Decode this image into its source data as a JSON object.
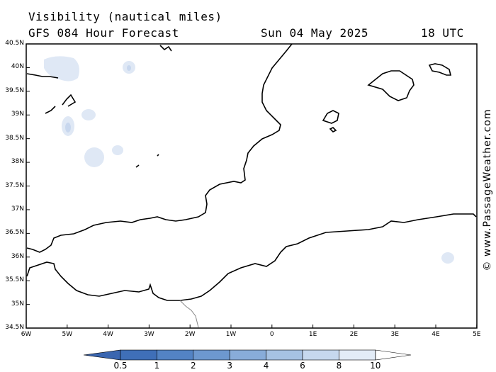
{
  "header": {
    "title": "Visibility (nautical miles)",
    "subtitle": "GFS 084 Hour Forecast",
    "date": "Sun 04 May 2025",
    "time": "18 UTC"
  },
  "axes": {
    "lat_labels": [
      "40.5N",
      "40N",
      "39.5N",
      "39N",
      "38.5N",
      "38N",
      "37.5N",
      "37N",
      "36.5N",
      "36N",
      "35.5N",
      "35N",
      "34.5N"
    ],
    "lon_labels": [
      "6W",
      "5W",
      "4W",
      "3W",
      "2W",
      "1W",
      "0",
      "1E",
      "2E",
      "3E",
      "4E",
      "5E"
    ]
  },
  "legend": {
    "labels": [
      "0.5",
      "1",
      "2",
      "3",
      "4",
      "6",
      "8",
      "10"
    ],
    "colors": [
      "#3f6fb8",
      "#5383c4",
      "#6d98cf",
      "#88acd9",
      "#a6c2e3",
      "#c6d8ee",
      "#e3ecf7",
      "#ffffff"
    ]
  },
  "credit": "© www.PassageWeather.com"
}
